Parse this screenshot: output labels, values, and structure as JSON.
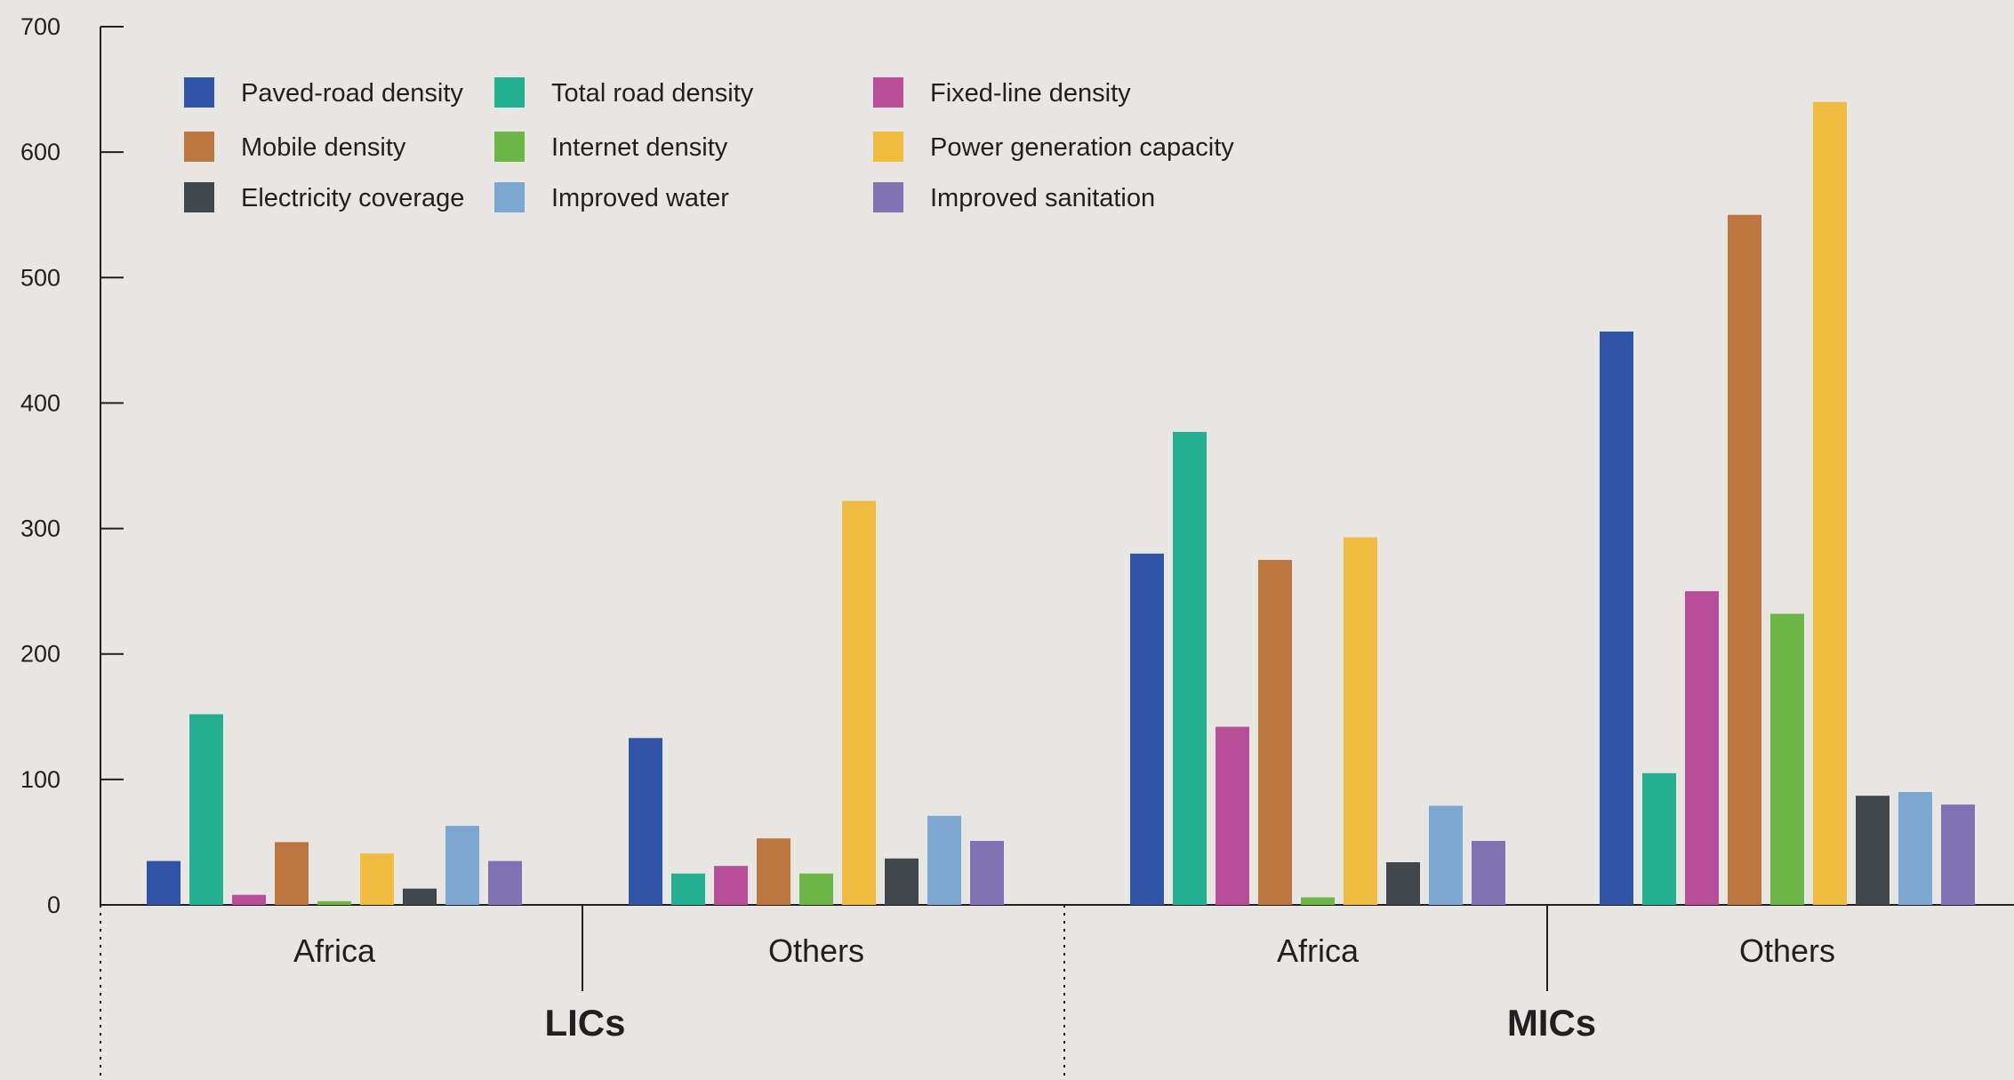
{
  "chart_data": {
    "type": "bar",
    "ylim": [
      0,
      700
    ],
    "y_ticks": [
      0,
      100,
      200,
      300,
      400,
      500,
      600,
      700
    ],
    "y_tick_labels": [
      "0",
      "100",
      "200",
      "300",
      "400",
      "500",
      "600",
      "700"
    ],
    "legend_placement": "top-left",
    "grid": false,
    "colors": {
      "Paved-road density": "#2f55a4",
      "Total road density": "#24b08e",
      "Fixed-line density": "#b94e98",
      "Mobile density": "#bd763f",
      "Internet density": "#6db746",
      "Power generation capacity": "#f0bc40",
      "Electricity coverage": "#42474d",
      "Improved water": "#7ba7d0",
      "Improved sanitation": "#8172b4"
    },
    "legend_order": [
      "Paved-road density",
      "Total road density",
      "Fixed-line density",
      "Mobile density",
      "Internet density",
      "Power generation capacity",
      "Electricity coverage",
      "Improved water",
      "Improved sanitation"
    ],
    "bar_order": [
      "Paved-road density",
      "Total road density",
      "Fixed-line density",
      "Mobile density",
      "Internet density",
      "Power generation capacity",
      "Electricity coverage",
      "Improved water",
      "Improved sanitation"
    ],
    "groups": [
      {
        "group": "LICs",
        "categories": [
          {
            "name": "Africa",
            "values": [
              35,
              152,
              8,
              50,
              3,
              41,
              13,
              63,
              35
            ]
          },
          {
            "name": "Others",
            "values": [
              133,
              25,
              31,
              53,
              25,
              322,
              37,
              71,
              51
            ]
          }
        ]
      },
      {
        "group": "MICs",
        "categories": [
          {
            "name": "Africa",
            "values": [
              280,
              377,
              142,
              275,
              6,
              293,
              34,
              79,
              51
            ]
          },
          {
            "name": "Others",
            "values": [
              457,
              105,
              250,
              550,
              232,
              640,
              87,
              90,
              80
            ]
          }
        ]
      }
    ]
  }
}
